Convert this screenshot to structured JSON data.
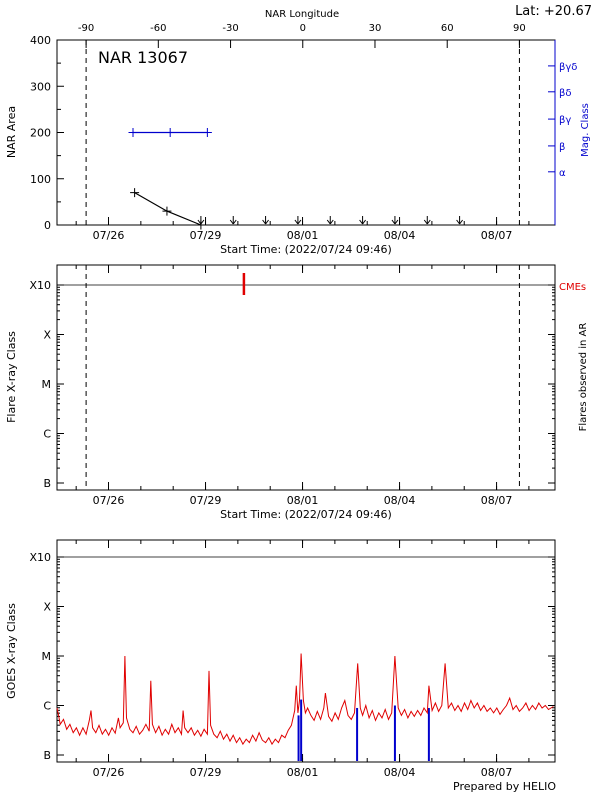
{
  "meta": {
    "lat_label": "Lat: +20.67",
    "credit": "Prepared by HELIO",
    "colors": {
      "accent_blue": "#0000cd",
      "accent_red": "#e00000"
    }
  },
  "time_axis": {
    "start_label": "Start Time: (2022/07/24 09:46)",
    "t_min": 0,
    "t_max": 15.4,
    "minor_tick_t0": 0.593,
    "major_ticks": [
      {
        "t": 1.593,
        "label": "07/26"
      },
      {
        "t": 4.593,
        "label": "07/29"
      },
      {
        "t": 7.593,
        "label": "08/01"
      },
      {
        "t": 10.593,
        "label": "08/04"
      },
      {
        "t": 13.593,
        "label": "08/07"
      }
    ],
    "limb_lines_t": [
      0.9,
      14.3
    ]
  },
  "chart_data": [
    {
      "id": "nar-area",
      "type": "line",
      "title": "NAR 13067",
      "ylabel": "NAR Area",
      "ylim": [
        0,
        400
      ],
      "yticks": [
        0,
        100,
        200,
        300,
        400
      ],
      "y_minor_ticks": [
        50,
        150,
        250,
        350
      ],
      "top_axis": {
        "label": "NAR Longitude",
        "tick_labels": [
          "-90",
          "-60",
          "-30",
          "0",
          "30",
          "60",
          "90"
        ],
        "tick_t": [
          0.9,
          3.133,
          5.367,
          7.6,
          9.833,
          12.067,
          14.3
        ]
      },
      "right_axis": {
        "label": "Mag. Class",
        "color": "#0000cd",
        "tick_labels": [
          "βγδ",
          "βδ",
          "βγ",
          "β",
          "α"
        ],
        "tick_values": [
          344,
          288,
          229,
          171,
          115
        ]
      },
      "series": [
        {
          "name": "magnetic-class",
          "color": "#0000cd",
          "marker": "plus",
          "points": [
            [
              2.35,
              200
            ],
            [
              3.5,
              200
            ],
            [
              4.65,
              200
            ]
          ]
        },
        {
          "name": "nar-area",
          "color": "#000000",
          "marker": "plus",
          "points": [
            [
              2.4,
              70
            ],
            [
              3.4,
              30
            ],
            [
              4.45,
              0
            ]
          ]
        }
      ],
      "zero_markers": {
        "name": "behind-limb-arrows",
        "marker": "arrow-down",
        "value": 0,
        "t": [
          4.45,
          5.45,
          6.45,
          7.45,
          8.45,
          9.45,
          10.45,
          11.45,
          12.45
        ]
      }
    },
    {
      "id": "flare-class",
      "type": "event",
      "ylabel": "Flare X-ray Class",
      "class_labels": [
        "B",
        "C",
        "M",
        "X",
        "X10"
      ],
      "right_label": "Flares observed in AR",
      "gridline_class": 4,
      "cme": {
        "label": "CMEs",
        "color": "#e00000",
        "events_t": [
          5.78
        ]
      }
    },
    {
      "id": "goes-xray",
      "type": "line",
      "ylabel": "GOES X-ray Class",
      "class_labels": [
        "B",
        "C",
        "M",
        "X",
        "X10"
      ],
      "gridline_class": 4,
      "event_lines": {
        "name": "flare-times",
        "color": "#0000cd",
        "points": [
          [
            7.47,
            0.8
          ],
          [
            7.55,
            1.12
          ],
          [
            9.28,
            0.95
          ],
          [
            10.45,
            1.0
          ],
          [
            11.5,
            0.95
          ]
        ]
      },
      "series": [
        {
          "name": "goes-flux",
          "color": "#e00000",
          "points": [
            [
              0,
              0.95
            ],
            [
              0.05,
              0.8
            ],
            [
              0.1,
              0.62
            ],
            [
              0.2,
              0.72
            ],
            [
              0.3,
              0.52
            ],
            [
              0.4,
              0.62
            ],
            [
              0.5,
              0.45
            ],
            [
              0.6,
              0.55
            ],
            [
              0.7,
              0.4
            ],
            [
              0.8,
              0.55
            ],
            [
              0.9,
              0.42
            ],
            [
              1.0,
              0.7
            ],
            [
              1.05,
              0.9
            ],
            [
              1.1,
              0.55
            ],
            [
              1.2,
              0.45
            ],
            [
              1.3,
              0.6
            ],
            [
              1.4,
              0.42
            ],
            [
              1.5,
              0.52
            ],
            [
              1.6,
              0.4
            ],
            [
              1.7,
              0.55
            ],
            [
              1.8,
              0.44
            ],
            [
              1.9,
              0.75
            ],
            [
              1.95,
              0.55
            ],
            [
              2.05,
              0.65
            ],
            [
              2.1,
              2.0
            ],
            [
              2.15,
              0.75
            ],
            [
              2.25,
              0.52
            ],
            [
              2.35,
              0.45
            ],
            [
              2.45,
              0.58
            ],
            [
              2.55,
              0.42
            ],
            [
              2.65,
              0.5
            ],
            [
              2.75,
              0.62
            ],
            [
              2.85,
              0.48
            ],
            [
              2.9,
              1.5
            ],
            [
              2.95,
              0.62
            ],
            [
              3.05,
              0.45
            ],
            [
              3.15,
              0.58
            ],
            [
              3.25,
              0.4
            ],
            [
              3.35,
              0.52
            ],
            [
              3.45,
              0.42
            ],
            [
              3.55,
              0.62
            ],
            [
              3.65,
              0.45
            ],
            [
              3.75,
              0.55
            ],
            [
              3.85,
              0.42
            ],
            [
              3.9,
              0.9
            ],
            [
              3.95,
              0.55
            ],
            [
              4.05,
              0.45
            ],
            [
              4.15,
              0.55
            ],
            [
              4.25,
              0.4
            ],
            [
              4.35,
              0.5
            ],
            [
              4.45,
              0.38
            ],
            [
              4.55,
              0.52
            ],
            [
              4.65,
              0.42
            ],
            [
              4.7,
              1.7
            ],
            [
              4.75,
              0.6
            ],
            [
              4.85,
              0.42
            ],
            [
              4.95,
              0.35
            ],
            [
              5.05,
              0.48
            ],
            [
              5.15,
              0.32
            ],
            [
              5.25,
              0.42
            ],
            [
              5.35,
              0.28
            ],
            [
              5.45,
              0.4
            ],
            [
              5.55,
              0.25
            ],
            [
              5.65,
              0.35
            ],
            [
              5.75,
              0.22
            ],
            [
              5.85,
              0.32
            ],
            [
              5.95,
              0.25
            ],
            [
              6.05,
              0.4
            ],
            [
              6.15,
              0.28
            ],
            [
              6.25,
              0.45
            ],
            [
              6.35,
              0.3
            ],
            [
              6.45,
              0.25
            ],
            [
              6.55,
              0.35
            ],
            [
              6.65,
              0.22
            ],
            [
              6.75,
              0.32
            ],
            [
              6.85,
              0.25
            ],
            [
              6.95,
              0.4
            ],
            [
              7.05,
              0.35
            ],
            [
              7.15,
              0.5
            ],
            [
              7.25,
              0.6
            ],
            [
              7.35,
              0.9
            ],
            [
              7.4,
              1.4
            ],
            [
              7.45,
              0.85
            ],
            [
              7.5,
              1.1
            ],
            [
              7.55,
              2.05
            ],
            [
              7.62,
              1.1
            ],
            [
              7.68,
              0.85
            ],
            [
              7.75,
              0.95
            ],
            [
              7.85,
              0.8
            ],
            [
              7.95,
              0.7
            ],
            [
              8.05,
              0.88
            ],
            [
              8.15,
              0.72
            ],
            [
              8.25,
              0.95
            ],
            [
              8.3,
              1.25
            ],
            [
              8.4,
              0.78
            ],
            [
              8.5,
              0.68
            ],
            [
              8.6,
              0.85
            ],
            [
              8.7,
              0.72
            ],
            [
              8.8,
              0.95
            ],
            [
              8.9,
              1.1
            ],
            [
              9.0,
              0.8
            ],
            [
              9.1,
              0.72
            ],
            [
              9.2,
              0.85
            ],
            [
              9.3,
              1.85
            ],
            [
              9.38,
              0.95
            ],
            [
              9.45,
              0.8
            ],
            [
              9.55,
              1.0
            ],
            [
              9.65,
              0.75
            ],
            [
              9.75,
              0.9
            ],
            [
              9.85,
              0.7
            ],
            [
              9.95,
              0.85
            ],
            [
              10.05,
              0.75
            ],
            [
              10.15,
              0.92
            ],
            [
              10.25,
              0.72
            ],
            [
              10.35,
              0.85
            ],
            [
              10.45,
              2.0
            ],
            [
              10.55,
              0.95
            ],
            [
              10.65,
              0.8
            ],
            [
              10.75,
              0.92
            ],
            [
              10.85,
              0.75
            ],
            [
              10.95,
              0.88
            ],
            [
              11.05,
              0.78
            ],
            [
              11.15,
              0.9
            ],
            [
              11.25,
              0.8
            ],
            [
              11.35,
              0.95
            ],
            [
              11.45,
              0.85
            ],
            [
              11.5,
              1.4
            ],
            [
              11.6,
              0.9
            ],
            [
              11.7,
              1.05
            ],
            [
              11.8,
              0.88
            ],
            [
              11.9,
              1.0
            ],
            [
              12.0,
              1.85
            ],
            [
              12.1,
              0.95
            ],
            [
              12.2,
              1.05
            ],
            [
              12.3,
              0.9
            ],
            [
              12.4,
              1.0
            ],
            [
              12.5,
              0.88
            ],
            [
              12.6,
              1.05
            ],
            [
              12.7,
              0.92
            ],
            [
              12.8,
              1.1
            ],
            [
              12.9,
              0.95
            ],
            [
              13.0,
              1.05
            ],
            [
              13.1,
              0.9
            ],
            [
              13.2,
              1.0
            ],
            [
              13.3,
              0.88
            ],
            [
              13.4,
              0.95
            ],
            [
              13.5,
              0.85
            ],
            [
              13.6,
              0.95
            ],
            [
              13.7,
              0.82
            ],
            [
              13.8,
              0.92
            ],
            [
              13.9,
              1.0
            ],
            [
              14.0,
              1.15
            ],
            [
              14.1,
              0.92
            ],
            [
              14.2,
              1.0
            ],
            [
              14.3,
              0.88
            ],
            [
              14.4,
              0.95
            ],
            [
              14.5,
              1.05
            ],
            [
              14.6,
              0.9
            ],
            [
              14.7,
              1.0
            ],
            [
              14.8,
              0.92
            ],
            [
              14.9,
              1.05
            ],
            [
              15.0,
              0.95
            ],
            [
              15.1,
              1.0
            ],
            [
              15.2,
              0.92
            ],
            [
              15.35,
              0.98
            ]
          ]
        }
      ]
    }
  ]
}
